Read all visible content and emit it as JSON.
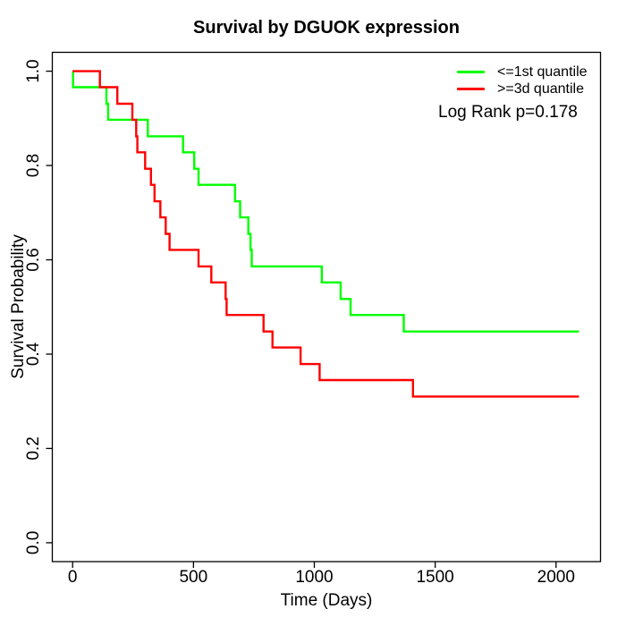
{
  "chart": {
    "title": "Survival by DGUOK expression",
    "xlabel": "Time (Days)",
    "ylabel": "Survival Probability",
    "annotation": "Log Rank p=0.178"
  },
  "chart_data": {
    "type": "line",
    "subtype": "kaplan-meier-step",
    "title": "Survival by DGUOK expression",
    "xlabel": "Time (Days)",
    "ylabel": "Survival Probability",
    "x_ticks": [
      0,
      500,
      1000,
      1500,
      2000
    ],
    "y_ticks": [
      0.0,
      0.2,
      0.4,
      0.6,
      0.8,
      1.0
    ],
    "xlim": [
      0,
      2100
    ],
    "ylim": [
      0.0,
      1.0
    ],
    "grid": false,
    "legend_position": "top-right",
    "annotation": "Log Rank p=0.178",
    "log_rank_p": 0.178,
    "end_time": 2095,
    "series": [
      {
        "name": "<=1st quantile",
        "color": "#00ff00",
        "steps": [
          [
            0,
            1.0
          ],
          [
            2,
            0.966
          ],
          [
            140,
            0.931
          ],
          [
            147,
            0.897
          ],
          [
            311,
            0.862
          ],
          [
            457,
            0.828
          ],
          [
            503,
            0.793
          ],
          [
            521,
            0.759
          ],
          [
            672,
            0.724
          ],
          [
            693,
            0.69
          ],
          [
            727,
            0.655
          ],
          [
            736,
            0.621
          ],
          [
            741,
            0.586
          ],
          [
            1031,
            0.552
          ],
          [
            1109,
            0.517
          ],
          [
            1150,
            0.483
          ],
          [
            1370,
            0.448
          ]
        ]
      },
      {
        "name": ">=3d quantile",
        "color": "#ff0000",
        "steps": [
          [
            0,
            1.0
          ],
          [
            113,
            0.966
          ],
          [
            185,
            0.931
          ],
          [
            247,
            0.897
          ],
          [
            263,
            0.862
          ],
          [
            268,
            0.828
          ],
          [
            300,
            0.793
          ],
          [
            324,
            0.759
          ],
          [
            339,
            0.724
          ],
          [
            363,
            0.69
          ],
          [
            385,
            0.655
          ],
          [
            401,
            0.621
          ],
          [
            521,
            0.586
          ],
          [
            574,
            0.552
          ],
          [
            633,
            0.517
          ],
          [
            637,
            0.483
          ],
          [
            790,
            0.448
          ],
          [
            827,
            0.414
          ],
          [
            943,
            0.379
          ],
          [
            1022,
            0.345
          ],
          [
            1408,
            0.31
          ]
        ]
      }
    ]
  }
}
